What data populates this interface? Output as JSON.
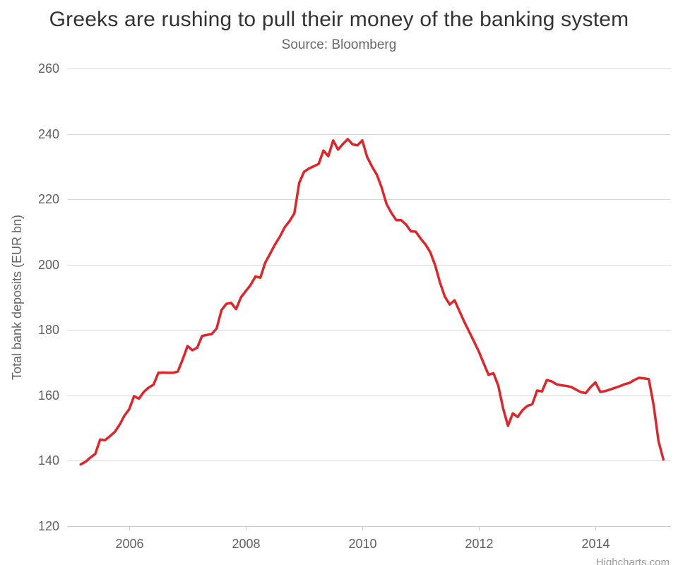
{
  "page": {
    "title": "Greeks are rushing to pull their money of the banking system",
    "subtitle": "Source: Bloomberg",
    "credits": "Highcharts.com"
  },
  "chart_data": {
    "type": "line",
    "title": "Greeks are rushing to pull their money of the banking system",
    "subtitle": "Source: Bloomberg",
    "xlabel": "",
    "ylabel": "Total bank deposits (EUR bn)",
    "ylim": [
      120,
      260
    ],
    "y_ticks": [
      120,
      140,
      160,
      180,
      200,
      220,
      240,
      260
    ],
    "x_ticks": [
      2006,
      2008,
      2010,
      2012,
      2014
    ],
    "grid": "horizontal-only",
    "legend": "none",
    "line_color": "#dc262c",
    "series": {
      "start_month": "2005-03",
      "end_month": "2015-03",
      "frequency": "monthly",
      "values": [
        138.9,
        139.7,
        141.0,
        142.1,
        146.5,
        146.3,
        147.5,
        148.8,
        151.0,
        153.8,
        155.8,
        159.8,
        159.0,
        161.1,
        162.4,
        163.3,
        166.9,
        167.0,
        166.9,
        166.9,
        167.3,
        171.0,
        175.1,
        173.8,
        174.6,
        178.2,
        178.5,
        178.8,
        180.5,
        186.1,
        188.0,
        188.3,
        186.4,
        190.0,
        191.9,
        193.8,
        196.4,
        196.0,
        200.6,
        203.3,
        206.1,
        208.5,
        211.4,
        213.3,
        215.7,
        225.0,
        228.4,
        229.4,
        230.1,
        230.8,
        234.9,
        233.2,
        238.0,
        235.2,
        236.9,
        238.4,
        236.8,
        236.5,
        238.0,
        232.9,
        230.0,
        227.5,
        223.5,
        218.5,
        215.8,
        213.6,
        213.6,
        212.3,
        210.2,
        210.1,
        208.0,
        206.2,
        203.8,
        199.8,
        194.5,
        190.2,
        187.8,
        189.1,
        185.8,
        182.5,
        179.5,
        176.5,
        173.4,
        169.8,
        166.3,
        166.8,
        163.0,
        156.0,
        150.7,
        154.5,
        153.4,
        155.5,
        156.8,
        157.3,
        161.5,
        161.2,
        164.7,
        164.3,
        163.4,
        163.1,
        162.9,
        162.6,
        161.8,
        161.0,
        160.7,
        162.5,
        164.0,
        161.1,
        161.3,
        161.8,
        162.3,
        162.8,
        163.4,
        163.8,
        164.7,
        165.4,
        165.2,
        165.0,
        157.0,
        146.0,
        140.4
      ]
    }
  },
  "colors": {
    "background": "#ffffff",
    "title": "#333333",
    "subtitle": "#666666",
    "axis_labels": "#606060",
    "y_axis_title": "#666666",
    "gridline": "#d8d8d8",
    "axis_line": "#c0d0e0",
    "line": "#dc262c",
    "credits": "#999999"
  }
}
